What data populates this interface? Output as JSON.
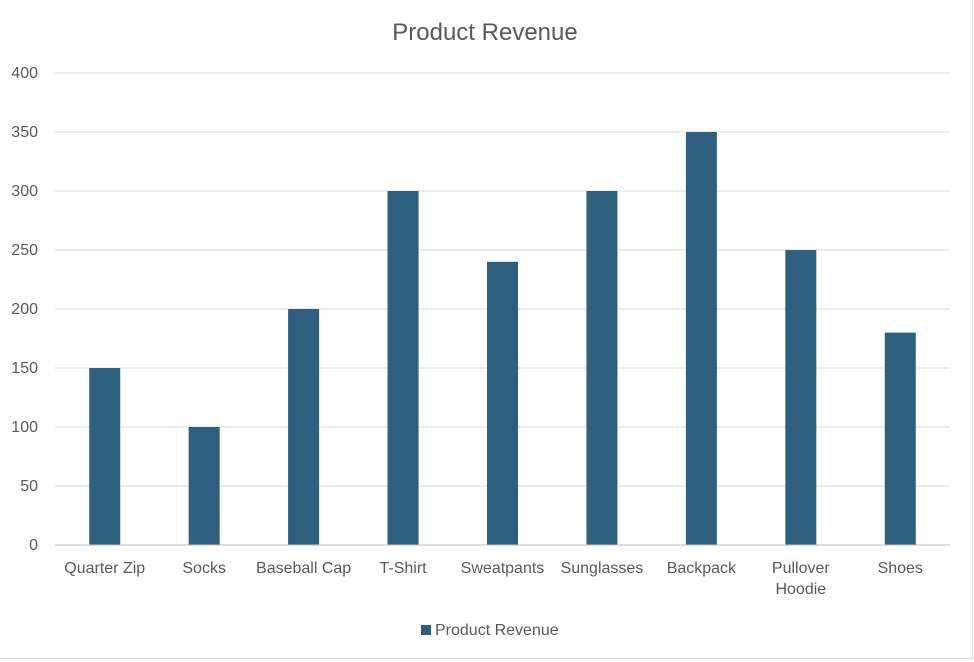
{
  "chart_data": {
    "type": "bar",
    "title": "Product Revenue",
    "categories": [
      "Quarter Zip",
      "Socks",
      "Baseball Cap",
      "T-Shirt",
      "Sweatpants",
      "Sunglasses",
      "Backpack",
      "Pullover Hoodie",
      "Shoes"
    ],
    "series": [
      {
        "name": "Product Revenue",
        "values": [
          150,
          100,
          200,
          300,
          240,
          300,
          350,
          250,
          180
        ],
        "color": "#2e5f7f"
      }
    ],
    "xlabel": "",
    "ylabel": "",
    "ylim": [
      0,
      400
    ],
    "yticks": [
      0,
      50,
      100,
      150,
      200,
      250,
      300,
      350,
      400
    ],
    "grid": true,
    "legend": "bottom"
  }
}
